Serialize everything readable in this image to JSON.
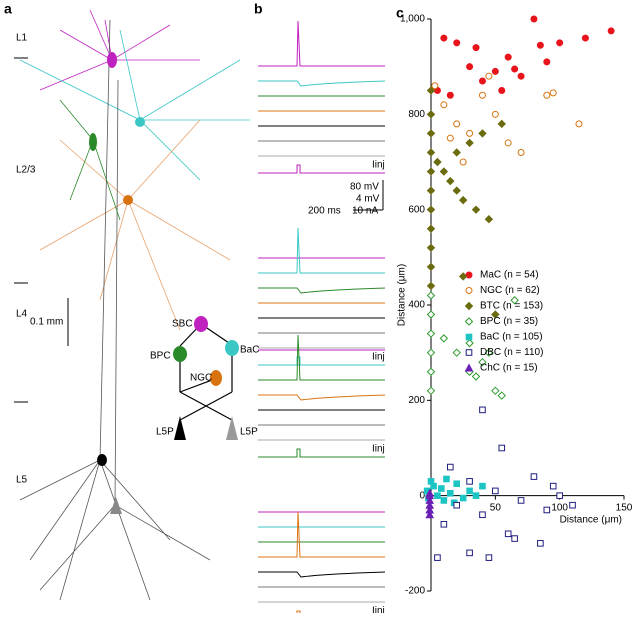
{
  "panel_a": {
    "label": "a",
    "layers": [
      "L1",
      "L2/3",
      "L4",
      "L5"
    ],
    "scale": "0.1 mm",
    "circuit": [
      "SBC",
      "BPC",
      "BaC",
      "NGC",
      "L5P",
      "L5P"
    ]
  },
  "panel_b": {
    "label": "b",
    "scale_labels": [
      "80 mV",
      "4 mV",
      "10 nA"
    ],
    "time_scale": "200 ms",
    "inj_labels": [
      "Iinj",
      "Iinj",
      "Iinj",
      "Iinj"
    ]
  },
  "chart_data": {
    "type": "scatter",
    "panel_label": "c",
    "x_label": "Distance (μm)",
    "y_label": "Distance (μm)",
    "xlim": [
      0,
      150
    ],
    "xticks": [
      50,
      100,
      150
    ],
    "ylim": [
      -200,
      1000
    ],
    "yticks": [
      -200,
      0,
      200,
      400,
      600,
      800,
      {
        "value": 1000,
        "label": "1,000"
      }
    ],
    "series": [
      {
        "name": "MaC (n = 54)",
        "color": "#e8141b",
        "marker": "circle",
        "filled": true,
        "x": [
          5,
          10,
          20,
          30,
          40,
          50,
          60,
          70,
          80,
          90,
          100,
          120,
          140,
          35,
          55,
          15,
          65,
          85
        ],
        "y": [
          850,
          960,
          950,
          900,
          870,
          890,
          920,
          880,
          1000,
          910,
          950,
          960,
          975,
          940,
          850,
          840,
          895,
          945
        ]
      },
      {
        "name": "NGC (n = 62)",
        "color": "#d9730f",
        "marker": "circle",
        "filled": false,
        "x": [
          3,
          10,
          20,
          30,
          40,
          50,
          60,
          70,
          90,
          95,
          115,
          25,
          45,
          15
        ],
        "y": [
          860,
          820,
          780,
          760,
          840,
          800,
          740,
          720,
          840,
          845,
          780,
          700,
          880,
          750
        ]
      },
      {
        "name": "BTC (n = 153)",
        "color": "#6b6b10",
        "marker": "diamond",
        "filled": true,
        "x": [
          0,
          0,
          0,
          0,
          0,
          0,
          0,
          0,
          0,
          0,
          0,
          5,
          10,
          15,
          20,
          25,
          35,
          45,
          40,
          55,
          30,
          20,
          50,
          25
        ],
        "y": [
          850,
          800,
          760,
          720,
          680,
          640,
          600,
          560,
          520,
          480,
          440,
          700,
          680,
          660,
          640,
          620,
          600,
          580,
          760,
          780,
          740,
          720,
          380,
          460
        ]
      },
      {
        "name": "BPC (n = 35)",
        "color": "#2e9a2e",
        "marker": "diamond",
        "filled": false,
        "x": [
          0,
          0,
          0,
          0,
          0,
          0,
          10,
          20,
          30,
          35,
          40,
          50,
          55,
          45,
          65,
          30
        ],
        "y": [
          420,
          380,
          340,
          300,
          260,
          220,
          330,
          300,
          260,
          250,
          280,
          220,
          210,
          300,
          410,
          320
        ]
      },
      {
        "name": "BaC (n = 105)",
        "color": "#1cc4c4",
        "marker": "square",
        "filled": true,
        "x": [
          -3,
          -2,
          0,
          2,
          5,
          8,
          10,
          15,
          20,
          25,
          30,
          35,
          40,
          12,
          18
        ],
        "y": [
          10,
          -5,
          30,
          20,
          0,
          15,
          -10,
          5,
          25,
          -5,
          10,
          0,
          20,
          35,
          -15
        ]
      },
      {
        "name": "DBC (n = 110)",
        "color": "#1e1e80",
        "marker": "square",
        "filled": false,
        "x": [
          5,
          10,
          20,
          30,
          40,
          50,
          60,
          70,
          80,
          90,
          100,
          110,
          40,
          55,
          30,
          45,
          65,
          15,
          85,
          95
        ],
        "y": [
          -130,
          -60,
          -20,
          30,
          -40,
          10,
          -80,
          -10,
          40,
          -30,
          0,
          -20,
          180,
          100,
          -120,
          -130,
          -90,
          60,
          -100,
          20
        ]
      },
      {
        "name": "ChC (n = 15)",
        "color": "#6a1fb5",
        "marker": "triangle",
        "filled": true,
        "x": [
          -1,
          -1,
          -1,
          -1,
          -1,
          -1
        ],
        "y": [
          -20,
          -10,
          0,
          -30,
          -40,
          5
        ]
      }
    ]
  }
}
